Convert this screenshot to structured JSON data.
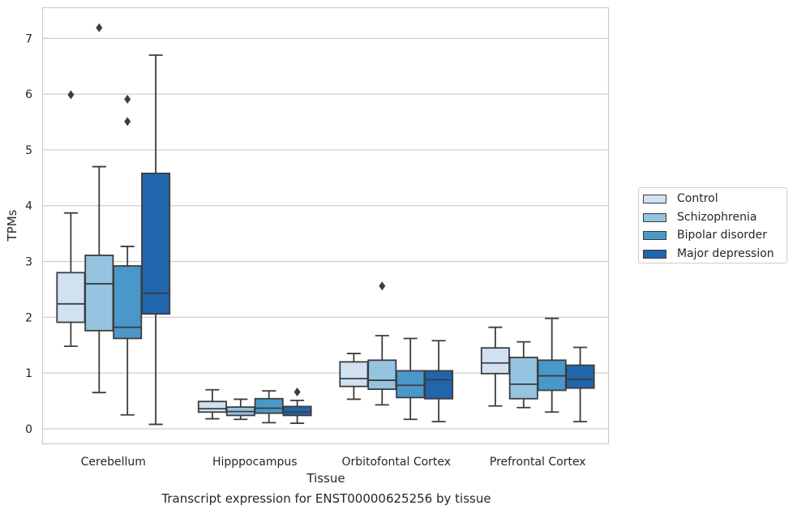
{
  "chart_data": {
    "type": "box",
    "title": "",
    "xlabel": "Tissue",
    "ylabel": "TPMs",
    "ylim": [
      -0.27,
      7.55
    ],
    "yticks": [
      0,
      1,
      2,
      3,
      4,
      5,
      6,
      7
    ],
    "grid": "horizontal",
    "legend_placement": "right",
    "categories": [
      "Cerebellum",
      "Hipppocampus",
      "Orbitofontal Cortex",
      "Prefrontal Cortex"
    ],
    "series": [
      {
        "name": "Control",
        "color": "#d0e1f2",
        "boxes": [
          {
            "whisker_low": 1.48,
            "q1": 1.91,
            "median": 2.24,
            "q3": 2.8,
            "whisker_high": 3.87,
            "outliers": [
              5.99
            ]
          },
          {
            "whisker_low": 0.18,
            "q1": 0.3,
            "median": 0.36,
            "q3": 0.49,
            "whisker_high": 0.7,
            "outliers": []
          },
          {
            "whisker_low": 0.53,
            "q1": 0.76,
            "median": 0.9,
            "q3": 1.2,
            "whisker_high": 1.35,
            "outliers": []
          },
          {
            "whisker_low": 0.41,
            "q1": 0.99,
            "median": 1.18,
            "q3": 1.45,
            "whisker_high": 1.82,
            "outliers": []
          }
        ]
      },
      {
        "name": "Schizophrenia",
        "color": "#94c4df",
        "boxes": [
          {
            "whisker_low": 0.65,
            "q1": 1.76,
            "median": 2.6,
            "q3": 3.11,
            "whisker_high": 4.7,
            "outliers": [
              7.19
            ]
          },
          {
            "whisker_low": 0.17,
            "q1": 0.24,
            "median": 0.31,
            "q3": 0.39,
            "whisker_high": 0.53,
            "outliers": []
          },
          {
            "whisker_low": 0.43,
            "q1": 0.71,
            "median": 0.87,
            "q3": 1.23,
            "whisker_high": 1.67,
            "outliers": [
              2.56
            ]
          },
          {
            "whisker_low": 0.38,
            "q1": 0.54,
            "median": 0.8,
            "q3": 1.28,
            "whisker_high": 1.56,
            "outliers": []
          }
        ]
      },
      {
        "name": "Bipolar disorder",
        "color": "#4a98c9",
        "boxes": [
          {
            "whisker_low": 0.25,
            "q1": 1.62,
            "median": 1.82,
            "q3": 2.92,
            "whisker_high": 3.27,
            "outliers": [
              5.91,
              5.51
            ]
          },
          {
            "whisker_low": 0.11,
            "q1": 0.28,
            "median": 0.37,
            "q3": 0.54,
            "whisker_high": 0.68,
            "outliers": []
          },
          {
            "whisker_low": 0.17,
            "q1": 0.56,
            "median": 0.78,
            "q3": 1.04,
            "whisker_high": 1.62,
            "outliers": []
          },
          {
            "whisker_low": 0.3,
            "q1": 0.69,
            "median": 0.95,
            "q3": 1.23,
            "whisker_high": 1.98,
            "outliers": []
          }
        ]
      },
      {
        "name": "Major depression",
        "color": "#2166ac",
        "boxes": [
          {
            "whisker_low": 0.08,
            "q1": 2.06,
            "median": 2.43,
            "q3": 4.58,
            "whisker_high": 6.7,
            "outliers": []
          },
          {
            "whisker_low": 0.1,
            "q1": 0.24,
            "median": 0.3,
            "q3": 0.4,
            "whisker_high": 0.51,
            "outliers": [
              0.66
            ]
          },
          {
            "whisker_low": 0.13,
            "q1": 0.54,
            "median": 0.88,
            "q3": 1.04,
            "whisker_high": 1.58,
            "outliers": []
          },
          {
            "whisker_low": 0.13,
            "q1": 0.73,
            "median": 0.89,
            "q3": 1.14,
            "whisker_high": 1.46,
            "outliers": []
          }
        ]
      }
    ],
    "caption": "Transcript expression for ENST00000625256 by tissue"
  }
}
